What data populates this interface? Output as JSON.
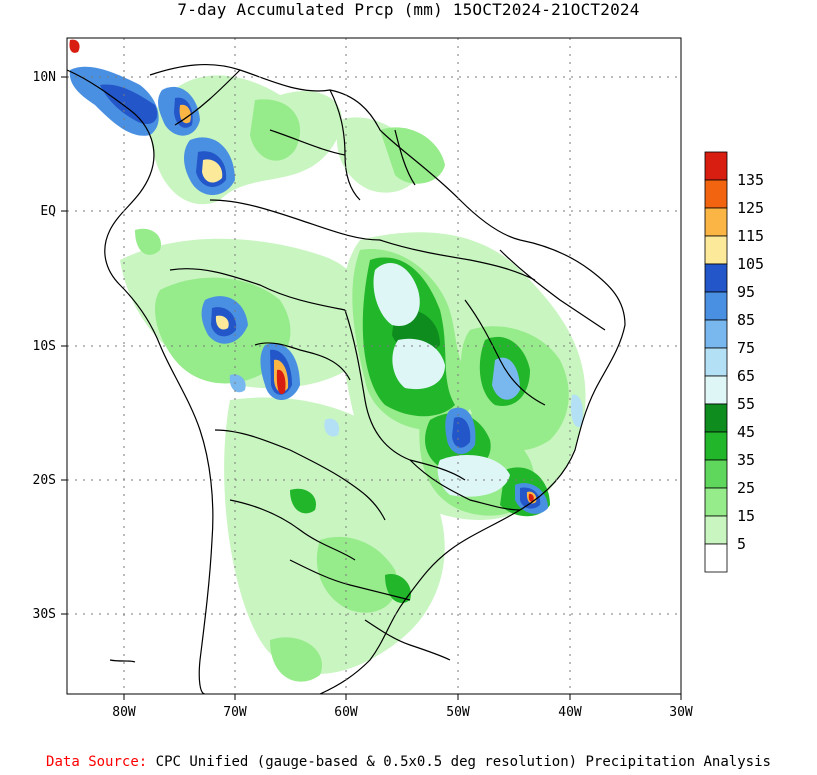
{
  "title": "7-day Accumulated Prcp (mm) 15OCT2024-21OCT2024",
  "footer": {
    "source_label": "Data Source:",
    "source_text": "CPC Unified (gauge-based & 0.5x0.5 deg resolution) Precipitation Analysis"
  },
  "map": {
    "region": "South America (Brazil focus)",
    "lon_labels": [
      "80W",
      "70W",
      "60W",
      "50W",
      "40W",
      "30W"
    ],
    "lat_labels": [
      "10N",
      "EQ",
      "10S",
      "20S",
      "30S"
    ],
    "grid": "dotted"
  },
  "legend": {
    "labels": [
      "5",
      "15",
      "25",
      "35",
      "45",
      "55",
      "65",
      "75",
      "85",
      "95",
      "105",
      "115",
      "125",
      "135"
    ],
    "colors": [
      "#ffffff",
      "#c8f5c0",
      "#96eb8a",
      "#5fd65c",
      "#22b62a",
      "#0e8c1e",
      "#dff6f7",
      "#b4e0f5",
      "#78b8ee",
      "#4a90e2",
      "#2356c8",
      "#fde99a",
      "#fbb545",
      "#f2640f",
      "#d81e10"
    ]
  },
  "colors": {
    "light_green": "#c8f5c0",
    "mid_green": "#96eb8a",
    "green": "#5fd65c",
    "dark_green": "#22b62a",
    "darkest_green": "#0e8c1e",
    "pale_cyan": "#dff6f7",
    "light_blue": "#b4e0f5",
    "blue": "#4a90e2",
    "dark_blue": "#2356c8",
    "yellow": "#fde99a",
    "orange": "#fbb545",
    "red": "#d81e10"
  }
}
